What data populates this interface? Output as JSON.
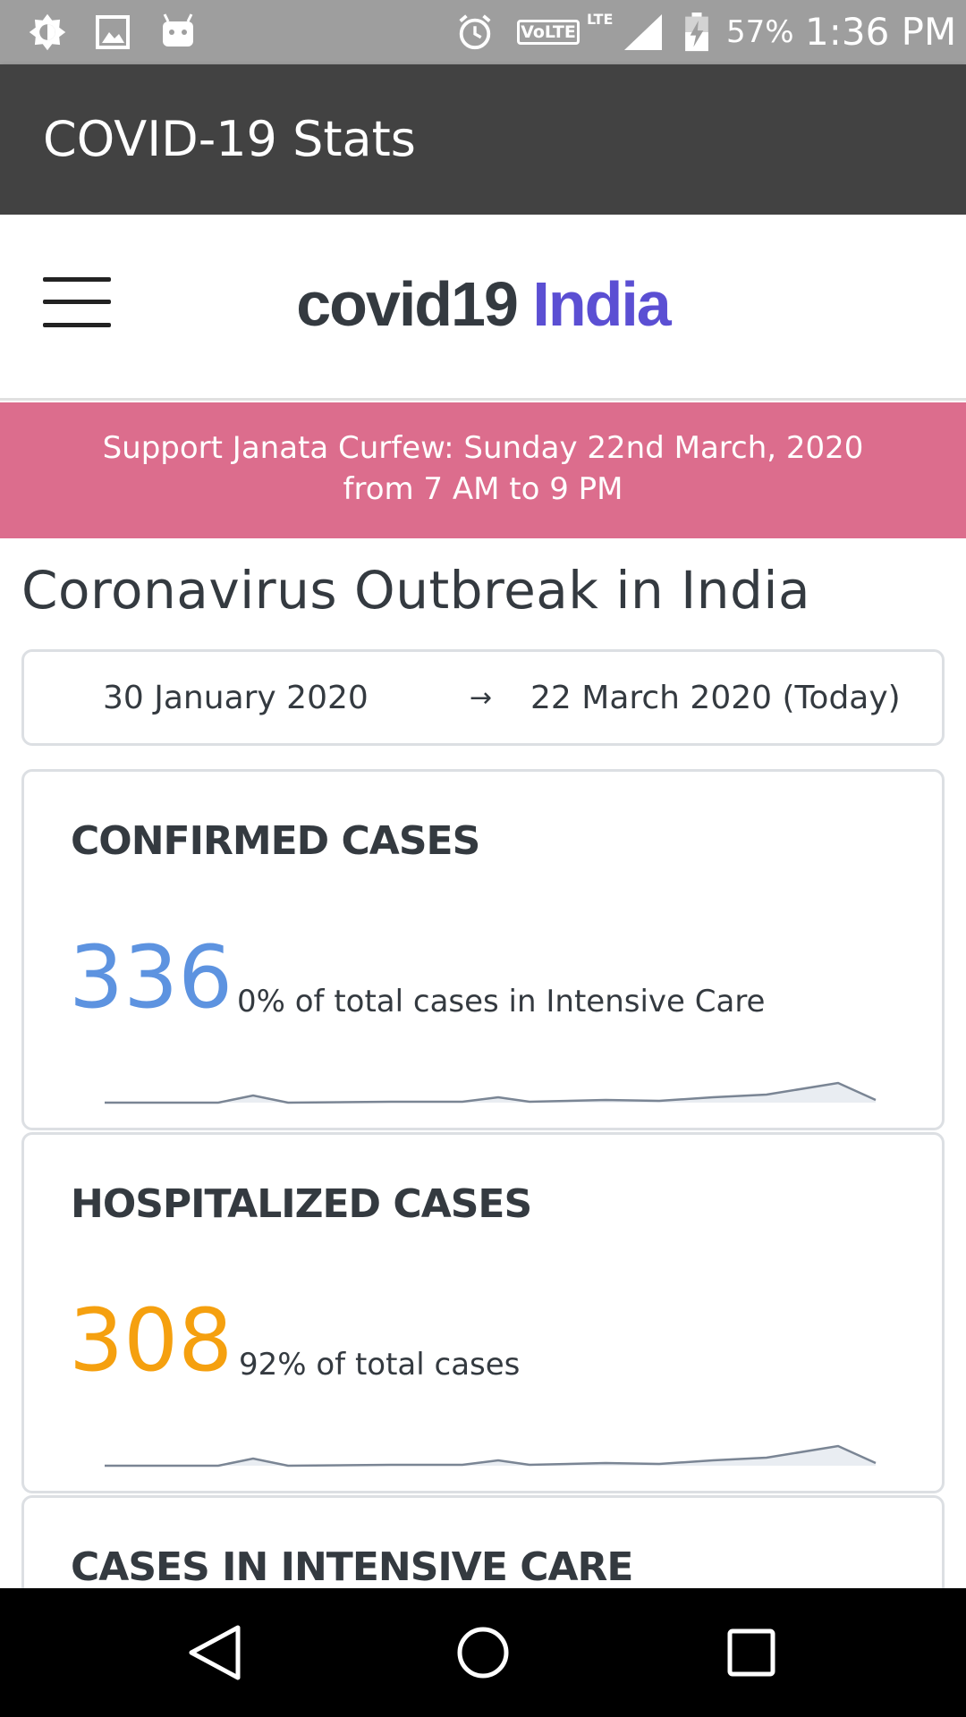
{
  "status_bar": {
    "battery": "57%",
    "time": "1:36 PM",
    "network_badge": "VoLTE",
    "network_type": "LTE",
    "icons": [
      "brightness-icon",
      "gallery-icon",
      "android-icon",
      "alarm-icon",
      "signal-icon",
      "battery-charging-icon"
    ]
  },
  "app_bar": {
    "title": "COVID-19 Stats"
  },
  "navbar": {
    "brand_part1": "covid19",
    "brand_part2": "India",
    "brand_accent_color": "#5b4fd3",
    "menu_icon": "hamburger-menu-icon"
  },
  "banner": {
    "line1": "Support Janata Curfew: Sunday 22nd March, 2020",
    "line2": "from 7 AM to 9 PM",
    "color": "#dc6d8d"
  },
  "heading": "Coronavirus Outbreak in India",
  "date_range": {
    "start": "30 January 2020",
    "arrow": "→",
    "end": "22 March 2020 (Today)"
  },
  "cards": {
    "confirmed": {
      "title": "CONFIRMED CASES",
      "value": "336",
      "description": "0% of total cases in Intensive Care",
      "color": "#5d93e0"
    },
    "hospitalized": {
      "title": "HOSPITALIZED CASES",
      "value": "308",
      "description": "92% of total cases",
      "color": "#f5a00f"
    },
    "icu": {
      "title": "CASES IN INTENSIVE CARE"
    }
  },
  "nav_bar": {
    "icons": [
      "back-icon",
      "home-icon",
      "recents-icon"
    ]
  }
}
